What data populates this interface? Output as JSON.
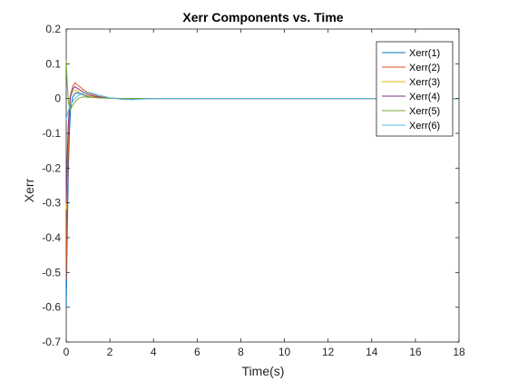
{
  "chart_data": {
    "type": "line",
    "title": "Xerr Components vs. Time",
    "xlabel": "Time(s)",
    "ylabel": "Xerr",
    "xlim": [
      0,
      18
    ],
    "ylim": [
      -0.7,
      0.2
    ],
    "xticks": [
      0,
      2,
      4,
      6,
      8,
      10,
      12,
      14,
      16,
      18
    ],
    "yticks": [
      -0.7,
      -0.6,
      -0.5,
      -0.4,
      -0.3,
      -0.2,
      -0.1,
      0,
      0.1,
      0.2
    ],
    "grid": false,
    "legend_position": "top-right",
    "series": [
      {
        "name": "Xerr(1)",
        "color": "#0072BD",
        "x": [
          0,
          0.05,
          0.1,
          0.15,
          0.2,
          0.3,
          0.4,
          0.5,
          0.6,
          0.8,
          1.0,
          1.2,
          1.5,
          2.0,
          2.5,
          3.0,
          4.0,
          6.0,
          10.0,
          18.0
        ],
        "y": [
          -0.6,
          -0.38,
          -0.2,
          -0.09,
          -0.03,
          0.005,
          0.015,
          0.017,
          0.015,
          0.01,
          0.006,
          0.004,
          0.002,
          0.001,
          0.0,
          0.0,
          0.0,
          0.0,
          0.0,
          0.0
        ]
      },
      {
        "name": "Xerr(2)",
        "color": "#D95319",
        "x": [
          0,
          0.05,
          0.1,
          0.15,
          0.2,
          0.3,
          0.4,
          0.5,
          0.6,
          0.8,
          1.0,
          1.2,
          1.5,
          2.0,
          2.5,
          3.0,
          4.0,
          6.0,
          10.0,
          18.0
        ],
        "y": [
          -0.52,
          -0.3,
          -0.14,
          -0.04,
          0.01,
          0.035,
          0.045,
          0.04,
          0.035,
          0.025,
          0.017,
          0.012,
          0.006,
          0.002,
          0.0,
          -0.001,
          0.0,
          0.0,
          0.0,
          0.0
        ]
      },
      {
        "name": "Xerr(3)",
        "color": "#EDB120",
        "x": [
          0,
          0.05,
          0.1,
          0.15,
          0.2,
          0.3,
          0.4,
          0.5,
          0.6,
          0.8,
          1.0,
          1.2,
          1.5,
          2.0,
          2.5,
          3.0,
          4.0,
          6.0,
          10.0,
          18.0
        ],
        "y": [
          -0.32,
          -0.18,
          -0.08,
          -0.02,
          0.005,
          0.02,
          0.025,
          0.022,
          0.018,
          0.012,
          0.008,
          0.005,
          0.003,
          0.001,
          0.0,
          0.0,
          0.0,
          0.0,
          0.0,
          0.0
        ]
      },
      {
        "name": "Xerr(4)",
        "color": "#7E2F8E",
        "x": [
          0,
          0.05,
          0.1,
          0.15,
          0.2,
          0.3,
          0.4,
          0.5,
          0.6,
          0.8,
          1.0,
          1.2,
          1.5,
          2.0,
          2.5,
          3.0,
          4.0,
          6.0,
          10.0,
          18.0
        ],
        "y": [
          -0.3,
          -0.16,
          -0.07,
          -0.02,
          0.01,
          0.028,
          0.034,
          0.03,
          0.026,
          0.018,
          0.012,
          0.008,
          0.004,
          0.001,
          0.0,
          0.0,
          0.0,
          0.0,
          0.0,
          0.0
        ]
      },
      {
        "name": "Xerr(5)",
        "color": "#77AC30",
        "x": [
          0,
          0.05,
          0.1,
          0.15,
          0.2,
          0.3,
          0.4,
          0.5,
          0.6,
          0.8,
          1.0,
          1.2,
          1.5,
          2.0,
          2.5,
          3.0,
          4.0,
          6.0,
          10.0,
          18.0
        ],
        "y": [
          0.11,
          0.04,
          -0.01,
          -0.025,
          -0.03,
          -0.02,
          -0.01,
          -0.003,
          0.002,
          0.005,
          0.004,
          0.003,
          0.002,
          0.001,
          0.0,
          0.0,
          0.0,
          0.0,
          0.0,
          0.0
        ]
      },
      {
        "name": "Xerr(6)",
        "color": "#4DBEEE",
        "x": [
          0,
          0.05,
          0.1,
          0.15,
          0.2,
          0.3,
          0.4,
          0.5,
          0.6,
          0.8,
          1.0,
          1.2,
          1.5,
          2.0,
          2.5,
          3.0,
          4.0,
          6.0,
          10.0,
          18.0
        ],
        "y": [
          -0.06,
          -0.045,
          -0.035,
          -0.025,
          -0.018,
          -0.008,
          0.0,
          0.006,
          0.01,
          0.016,
          0.018,
          0.015,
          0.01,
          0.002,
          -0.002,
          -0.003,
          0.0,
          0.0,
          0.0,
          0.0
        ]
      }
    ]
  }
}
